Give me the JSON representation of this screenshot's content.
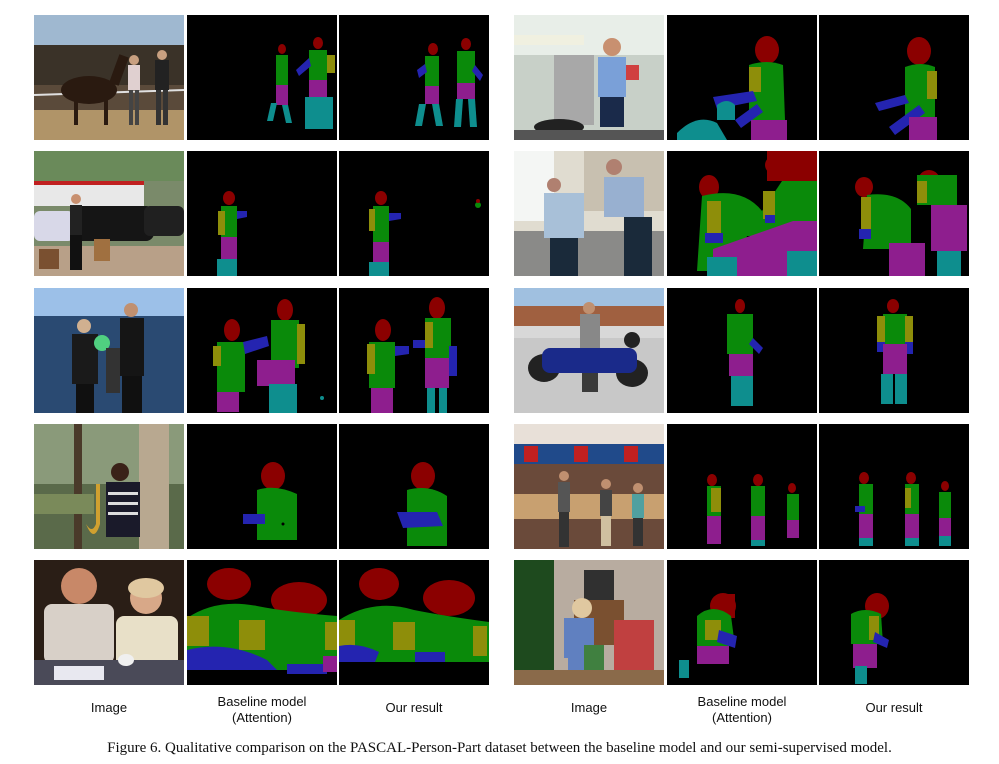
{
  "columns": {
    "left": [
      "Image",
      "Baseline model\n(Attention)",
      "Our result"
    ],
    "right": [
      "Image",
      "Baseline model\n(Attention)",
      "Our result"
    ]
  },
  "legend_colors": {
    "background": "#000000",
    "head": "#8b0000",
    "torso": "#0a8a0a",
    "upper_arm": "#8e8e0a",
    "lower_arm": "#2424b0",
    "upper_leg": "#8e1e8e",
    "lower_leg": "#0e8e8e"
  },
  "caption": "Figure 6. Qualitative comparison on the PASCAL-Person-Part dataset between the baseline model and our semi-supervised model."
}
